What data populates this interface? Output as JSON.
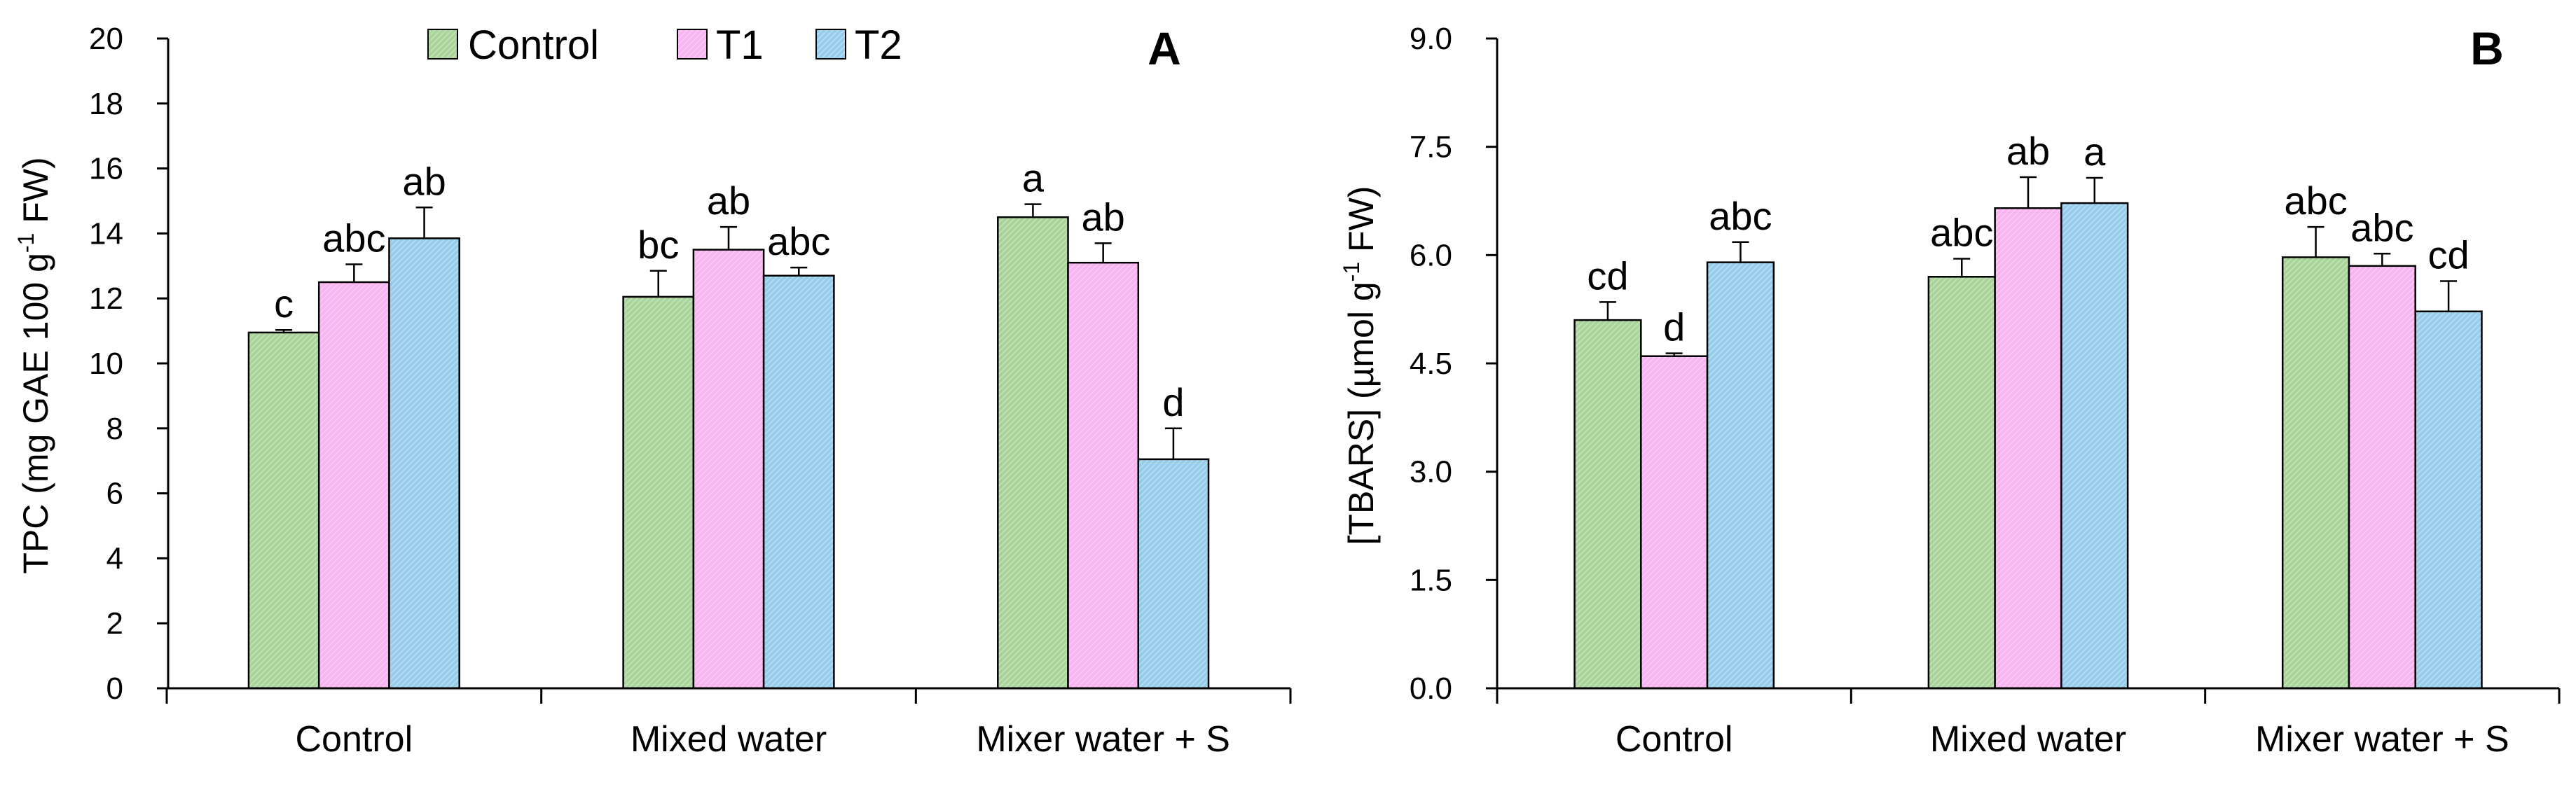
{
  "legend": {
    "entries": [
      {
        "label": "Control",
        "color": "#a9d49a"
      },
      {
        "label": "T1",
        "color": "#f7b4f0"
      },
      {
        "label": "T2",
        "color": "#96cdea"
      }
    ]
  },
  "chart_data": [
    {
      "type": "bar",
      "panel": "A",
      "ylabel_parts": [
        "TPC (mg GAE 100 g",
        "-1",
        " FW)"
      ],
      "ylim": [
        0,
        20
      ],
      "yticks": [
        "0",
        "2",
        "4",
        "6",
        "8",
        "10",
        "12",
        "14",
        "16",
        "18",
        "20"
      ],
      "categories": [
        "Control",
        "Mixed water",
        "Mixer water + S"
      ],
      "series": [
        {
          "name": "Control",
          "values": [
            10.95,
            12.05,
            14.5
          ],
          "errors": [
            0.08,
            0.8,
            0.4
          ],
          "labels": [
            "c",
            "bc",
            "a"
          ]
        },
        {
          "name": "T1",
          "values": [
            12.5,
            13.5,
            13.1
          ],
          "errors": [
            0.55,
            0.7,
            0.6
          ],
          "labels": [
            "abc",
            "ab",
            "ab"
          ]
        },
        {
          "name": "T2",
          "values": [
            13.85,
            12.7,
            7.05
          ],
          "errors": [
            0.95,
            0.25,
            0.95
          ],
          "labels": [
            "ab",
            "abc",
            "d"
          ]
        }
      ]
    },
    {
      "type": "bar",
      "panel": "B",
      "ylabel_parts": [
        "[TBARS] (µmol g",
        "-1",
        " FW)"
      ],
      "ylim": [
        0,
        9
      ],
      "yticks": [
        "0.0",
        "1.5",
        "3.0",
        "4.5",
        "6.0",
        "7.5",
        "9.0"
      ],
      "categories": [
        "Control",
        "Mixed water",
        "Mixer water + S"
      ],
      "series": [
        {
          "name": "Control",
          "values": [
            5.1,
            5.7,
            5.97
          ],
          "errors": [
            0.25,
            0.25,
            0.42
          ],
          "labels": [
            "cd",
            "abc",
            "abc"
          ]
        },
        {
          "name": "T1",
          "values": [
            4.6,
            6.65,
            5.85
          ],
          "errors": [
            0.04,
            0.43,
            0.17
          ],
          "labels": [
            "d",
            "ab",
            "abc"
          ]
        },
        {
          "name": "T2",
          "values": [
            5.9,
            6.72,
            5.22
          ],
          "errors": [
            0.28,
            0.35,
            0.42
          ],
          "labels": [
            "abc",
            "a",
            "cd"
          ]
        }
      ]
    }
  ]
}
